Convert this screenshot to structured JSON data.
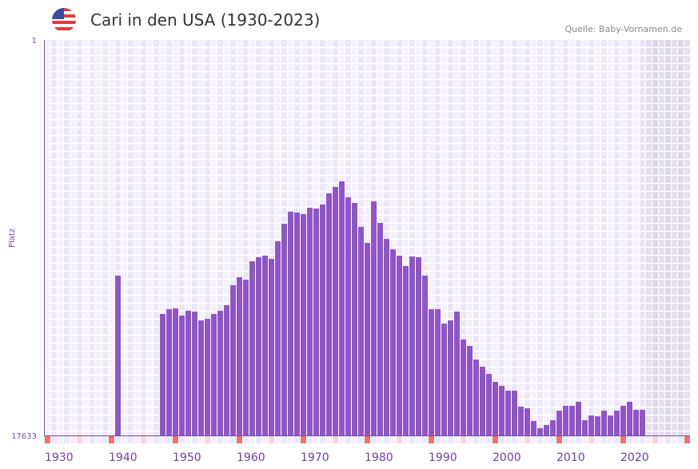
{
  "header": {
    "title": "Cari in den USA (1930-2023)",
    "source": "Quelle: Baby-Vornamen.de",
    "flag_icon": "us-flag-icon"
  },
  "chart_data": {
    "type": "bar",
    "title": "Cari in den USA (1930-2023)",
    "ylabel": "Platz",
    "xlabel": "",
    "y_axis": "rank (inverted, 1 at top)",
    "ylim": [
      1,
      17633
    ],
    "ytick_labels": [
      "1",
      "17633"
    ],
    "xlim": [
      1930,
      2030
    ],
    "xtick_labels": [
      "1930",
      "1940",
      "1950",
      "1960",
      "1970",
      "1980",
      "1990",
      "2000",
      "2010",
      "2020"
    ],
    "grid": true,
    "bar_color": "#8e55c8",
    "years": [
      1941,
      1948,
      1949,
      1950,
      1951,
      1952,
      1953,
      1954,
      1955,
      1956,
      1957,
      1958,
      1959,
      1960,
      1961,
      1962,
      1963,
      1964,
      1965,
      1966,
      1967,
      1968,
      1969,
      1970,
      1971,
      1972,
      1973,
      1974,
      1975,
      1976,
      1977,
      1978,
      1979,
      1980,
      1981,
      1982,
      1983,
      1984,
      1985,
      1986,
      1987,
      1988,
      1989,
      1990,
      1991,
      1992,
      1993,
      1994,
      1995,
      1996,
      1997,
      1998,
      1999,
      2000,
      2001,
      2002,
      2003,
      2004,
      2005,
      2006,
      2007,
      2008,
      2009,
      2010,
      2011,
      2012,
      2013,
      2014,
      2015,
      2016,
      2017,
      2018,
      2019,
      2020,
      2021,
      2022,
      2023
    ],
    "ranks": [
      10508,
      12218,
      12004,
      11969,
      12289,
      12075,
      12111,
      12503,
      12431,
      12218,
      12075,
      11826,
      10935,
      10579,
      10686,
      9867,
      9689,
      9617,
      9760,
      8976,
      8193,
      7658,
      7694,
      7765,
      7480,
      7516,
      7338,
      6839,
      6554,
      6305,
      7017,
      7267,
      8335,
      9048,
      7195,
      8157,
      8869,
      9332,
      9617,
      10080,
      9653,
      9689,
      10508,
      12004,
      12004,
      12645,
      12503,
      12111,
      13358,
      13643,
      14248,
      14569,
      14889,
      15245,
      15424,
      15637,
      15637,
      16350,
      16421,
      16991,
      17311,
      17169,
      16955,
      16528,
      16314,
      16314,
      16136,
      16955,
      16741,
      16777,
      16528,
      16741,
      16528,
      16314,
      16136,
      16492,
      16492
    ]
  }
}
